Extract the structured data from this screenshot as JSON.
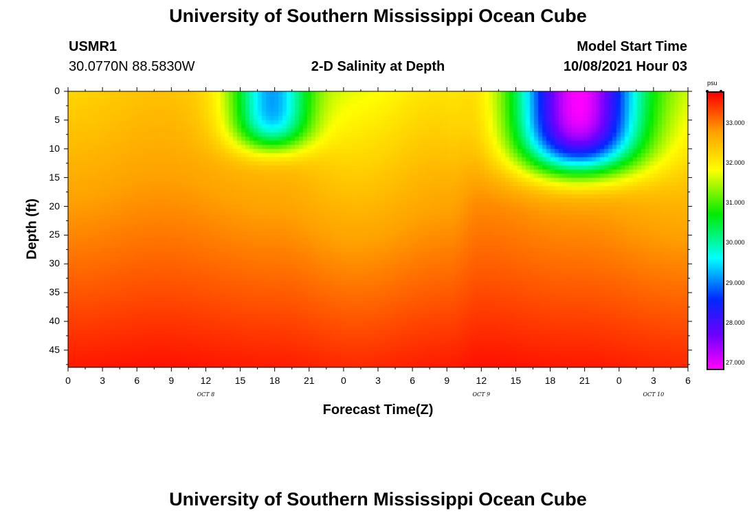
{
  "header": {
    "title": "University of Southern Mississippi Ocean Cube",
    "station_id": "USMR1",
    "coordinates": "30.0770N  88.5830W",
    "plot_title": "2-D Salinity at Depth",
    "model_label": "Model Start Time",
    "model_time": "10/08/2021 Hour 03"
  },
  "footer": {
    "title": "University of Southern Mississippi Ocean Cube"
  },
  "chart_data": {
    "type": "heatmap",
    "title": "2-D Salinity at Depth",
    "xlabel": "Forecast Time(Z)",
    "ylabel": "Depth (ft)",
    "xlim": [
      0,
      54
    ],
    "ylim": [
      48,
      0
    ],
    "x_ticks_hours": [
      0,
      3,
      6,
      9,
      12,
      15,
      18,
      21,
      24,
      27,
      30,
      33,
      36,
      39,
      42,
      45,
      48,
      51,
      54
    ],
    "x_tick_labels": [
      "0",
      "3",
      "6",
      "9",
      "12",
      "15",
      "18",
      "21",
      "0",
      "3",
      "6",
      "9",
      "12",
      "15",
      "18",
      "21",
      "0",
      "3",
      "6"
    ],
    "y_ticks": [
      0,
      5,
      10,
      15,
      20,
      25,
      30,
      35,
      40,
      45
    ],
    "date_labels": [
      {
        "text": "OCT 8",
        "hour": 12
      },
      {
        "text": "OCT 9",
        "hour": 36
      },
      {
        "text": "OCT 10",
        "hour": 51
      }
    ],
    "colorbar": {
      "unit": "psu",
      "min": 26.9,
      "max": 33.8,
      "ticks": [
        33.0,
        32.0,
        31.0,
        30.0,
        29.0,
        28.0,
        27.0
      ],
      "tick_labels": [
        "33.000",
        "32.000",
        "31.000",
        "30.000",
        "29.000",
        "28.000",
        "27.000"
      ]
    },
    "field": {
      "background": {
        "surface_psu": 32.2,
        "gradient_psu_per_ft": 0.03,
        "modulation": [
          {
            "hour": 0,
            "delta": 0.1
          },
          {
            "hour": 8,
            "delta": 0.3
          },
          {
            "hour": 18,
            "delta": 0.0
          },
          {
            "hour": 25,
            "delta": -0.4
          },
          {
            "hour": 33,
            "delta": 0.0
          },
          {
            "hour": 36,
            "delta": 0.35
          },
          {
            "hour": 44,
            "delta": 0.1
          },
          {
            "hour": 54,
            "delta": -0.3
          }
        ]
      },
      "freshwater_lenses": [
        {
          "center_hour": 17.8,
          "width_hours": 3.5,
          "depth_ft": 10,
          "min_psu": 29.2
        },
        {
          "center_hour": 44.5,
          "width_hours": 5.5,
          "depth_ft": 14,
          "min_psu": 26.9
        }
      ]
    }
  }
}
